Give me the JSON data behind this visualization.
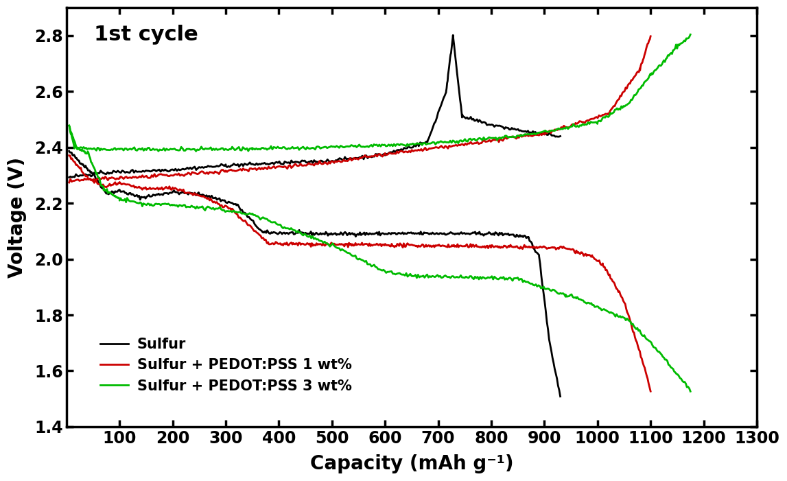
{
  "title": "1st cycle",
  "xlabel": "Capacity (mAh g⁻¹)",
  "ylabel": "Voltage (V)",
  "xlim": [
    0,
    1300
  ],
  "ylim": [
    1.4,
    2.9
  ],
  "xticks": [
    100,
    200,
    300,
    400,
    500,
    600,
    700,
    800,
    900,
    1000,
    1100,
    1200,
    1300
  ],
  "yticks": [
    1.4,
    1.6,
    1.8,
    2.0,
    2.2,
    2.4,
    2.6,
    2.8
  ],
  "colors": {
    "sulfur": "#000000",
    "pedot1": "#cc0000",
    "pedot3": "#00bb00"
  },
  "legend": [
    {
      "label": "Sulfur",
      "color": "#000000"
    },
    {
      "label": "Sulfur + PEDOT:PSS 1 wt%",
      "color": "#cc0000"
    },
    {
      "label": "Sulfur + PEDOT:PSS 3 wt%",
      "color": "#00bb00"
    }
  ],
  "title_fontsize": 22,
  "label_fontsize": 20,
  "tick_fontsize": 17,
  "legend_fontsize": 15,
  "linewidth": 2.0
}
